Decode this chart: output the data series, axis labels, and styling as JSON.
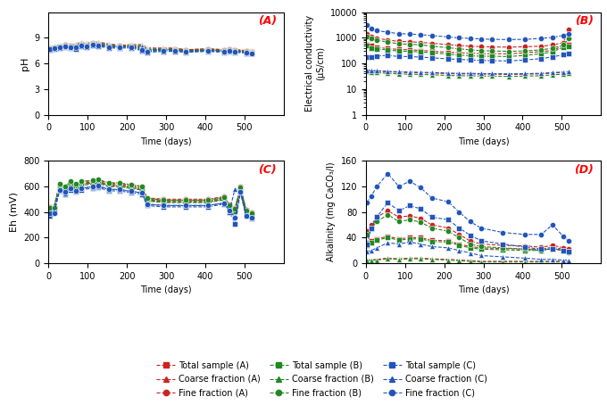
{
  "time": [
    3,
    14,
    28,
    42,
    56,
    70,
    84,
    98,
    112,
    126,
    154,
    182,
    210,
    238,
    252,
    294,
    322,
    350,
    406,
    448,
    462,
    476,
    504,
    518
  ],
  "pH_total_A": [
    7.7,
    7.8,
    8.0,
    8.1,
    8.0,
    7.9,
    8.2,
    8.1,
    8.3,
    8.2,
    8.0,
    8.0,
    8.0,
    7.9,
    7.6,
    7.6,
    7.6,
    7.5,
    7.6,
    7.5,
    7.6,
    7.5,
    7.4,
    7.4
  ],
  "pH_coarse_A": [
    7.9,
    8.0,
    8.1,
    8.2,
    8.1,
    8.3,
    8.5,
    8.4,
    8.5,
    8.5,
    8.3,
    8.1,
    8.2,
    8.2,
    7.8,
    7.8,
    7.8,
    7.6,
    7.7,
    7.6,
    7.7,
    7.6,
    7.5,
    7.5
  ],
  "pH_fine_A": [
    7.8,
    7.9,
    8.0,
    8.2,
    8.1,
    8.1,
    8.3,
    8.2,
    8.4,
    8.3,
    8.1,
    8.1,
    8.1,
    7.8,
    7.6,
    7.7,
    7.7,
    7.6,
    7.7,
    7.6,
    7.7,
    7.6,
    7.5,
    7.4
  ],
  "pH_total_B": [
    7.7,
    7.8,
    7.9,
    8.0,
    7.9,
    7.8,
    8.1,
    8.0,
    8.2,
    8.1,
    7.9,
    7.9,
    7.9,
    7.7,
    7.5,
    7.5,
    7.5,
    7.4,
    7.5,
    7.4,
    7.5,
    7.4,
    7.3,
    7.3
  ],
  "pH_coarse_B": [
    7.9,
    8.0,
    8.1,
    8.1,
    8.0,
    8.2,
    8.4,
    8.3,
    8.4,
    8.4,
    8.2,
    8.0,
    8.1,
    8.1,
    7.7,
    7.7,
    7.7,
    7.5,
    7.6,
    7.5,
    7.6,
    7.5,
    7.4,
    7.3
  ],
  "pH_fine_B": [
    7.8,
    7.9,
    8.0,
    8.1,
    8.0,
    8.0,
    8.2,
    8.1,
    8.3,
    8.2,
    8.0,
    8.0,
    8.0,
    7.7,
    7.5,
    7.6,
    7.6,
    7.5,
    7.6,
    7.5,
    7.6,
    7.5,
    7.4,
    7.3
  ],
  "pH_total_C": [
    7.6,
    7.7,
    7.8,
    7.9,
    7.8,
    7.7,
    8.0,
    7.9,
    8.1,
    8.0,
    7.8,
    7.8,
    7.8,
    7.5,
    7.3,
    7.4,
    7.4,
    7.3,
    7.4,
    7.3,
    7.4,
    7.3,
    7.2,
    7.2
  ],
  "pH_coarse_C": [
    7.8,
    7.9,
    8.0,
    8.0,
    7.9,
    8.1,
    8.3,
    8.2,
    8.3,
    8.3,
    8.1,
    7.9,
    8.0,
    8.0,
    7.6,
    7.6,
    7.6,
    7.4,
    7.5,
    7.4,
    7.5,
    7.4,
    7.3,
    7.2
  ],
  "pH_fine_C": [
    7.7,
    7.8,
    7.9,
    8.0,
    7.9,
    7.9,
    8.1,
    8.0,
    8.2,
    8.1,
    7.9,
    7.9,
    7.9,
    7.6,
    7.4,
    7.5,
    7.5,
    7.4,
    7.5,
    7.4,
    7.5,
    7.4,
    7.3,
    7.2
  ],
  "ec_time": [
    3,
    14,
    28,
    56,
    84,
    112,
    140,
    168,
    210,
    238,
    266,
    294,
    322,
    364,
    406,
    448,
    476,
    504,
    518
  ],
  "ec_total_A": [
    550,
    480,
    420,
    380,
    350,
    340,
    320,
    300,
    270,
    260,
    250,
    240,
    240,
    235,
    260,
    290,
    320,
    480,
    530
  ],
  "ec_coarse_A": [
    55,
    50,
    50,
    47,
    45,
    44,
    43,
    42,
    40,
    39,
    39,
    38,
    38,
    37,
    38,
    39,
    42,
    44,
    46
  ],
  "ec_fine_A": [
    1400,
    1100,
    950,
    820,
    720,
    700,
    660,
    610,
    540,
    500,
    470,
    450,
    440,
    430,
    445,
    470,
    520,
    650,
    2200
  ],
  "ec_total_B": [
    480,
    400,
    360,
    340,
    300,
    295,
    280,
    260,
    230,
    210,
    200,
    190,
    190,
    185,
    205,
    240,
    280,
    430,
    470
  ],
  "ec_coarse_B": [
    48,
    44,
    44,
    41,
    39,
    38,
    37,
    36,
    34,
    33,
    33,
    32,
    32,
    31,
    32,
    33,
    36,
    38,
    40
  ],
  "ec_fine_B": [
    1100,
    950,
    800,
    680,
    580,
    560,
    530,
    470,
    410,
    370,
    340,
    315,
    305,
    295,
    305,
    340,
    390,
    520,
    950
  ],
  "ec_total_C": [
    170,
    175,
    195,
    205,
    185,
    185,
    175,
    165,
    150,
    143,
    137,
    130,
    128,
    125,
    135,
    155,
    178,
    220,
    245
  ],
  "ec_coarse_C": [
    55,
    52,
    52,
    49,
    47,
    46,
    45,
    44,
    42,
    41,
    41,
    40,
    40,
    39,
    40,
    41,
    44,
    46,
    48
  ],
  "ec_fine_C": [
    3200,
    2300,
    1900,
    1650,
    1450,
    1400,
    1320,
    1220,
    1080,
    990,
    950,
    900,
    870,
    850,
    865,
    950,
    1030,
    1250,
    1450
  ],
  "eh_time": [
    3,
    14,
    28,
    42,
    56,
    70,
    84,
    112,
    126,
    154,
    182,
    210,
    238,
    252,
    294,
    350,
    406,
    448,
    462,
    476,
    490,
    504,
    518
  ],
  "eh_total_A": [
    430,
    430,
    610,
    590,
    625,
    605,
    625,
    635,
    640,
    615,
    615,
    600,
    590,
    500,
    490,
    490,
    490,
    510,
    450,
    420,
    590,
    410,
    390
  ],
  "eh_coarse_A": [
    420,
    445,
    595,
    565,
    615,
    595,
    615,
    625,
    635,
    605,
    605,
    590,
    580,
    490,
    480,
    480,
    480,
    498,
    442,
    412,
    580,
    400,
    380
  ],
  "eh_fine_A": [
    440,
    438,
    615,
    595,
    635,
    615,
    635,
    645,
    650,
    625,
    625,
    610,
    600,
    510,
    500,
    500,
    500,
    520,
    460,
    432,
    600,
    420,
    400
  ],
  "eh_total_B": [
    425,
    432,
    608,
    578,
    618,
    598,
    618,
    628,
    635,
    608,
    608,
    593,
    582,
    496,
    483,
    483,
    483,
    505,
    443,
    413,
    582,
    403,
    383
  ],
  "eh_coarse_B": [
    418,
    440,
    598,
    558,
    608,
    588,
    608,
    618,
    625,
    598,
    598,
    583,
    572,
    486,
    473,
    473,
    473,
    495,
    433,
    403,
    572,
    393,
    373
  ],
  "eh_fine_B": [
    433,
    435,
    618,
    598,
    638,
    618,
    638,
    648,
    655,
    628,
    628,
    613,
    602,
    506,
    493,
    493,
    493,
    515,
    453,
    423,
    592,
    413,
    393
  ],
  "eh_total_C": [
    380,
    395,
    565,
    535,
    575,
    555,
    575,
    585,
    592,
    565,
    565,
    550,
    540,
    450,
    440,
    440,
    440,
    462,
    400,
    310,
    550,
    368,
    348
  ],
  "eh_coarse_C": [
    372,
    408,
    575,
    545,
    585,
    565,
    585,
    595,
    602,
    575,
    575,
    560,
    550,
    460,
    450,
    450,
    450,
    472,
    410,
    582,
    560,
    378,
    358
  ],
  "eh_fine_C": [
    388,
    392,
    572,
    557,
    587,
    567,
    587,
    597,
    606,
    577,
    577,
    562,
    552,
    462,
    452,
    452,
    452,
    468,
    412,
    358,
    556,
    373,
    353
  ],
  "alk_time": [
    3,
    14,
    28,
    56,
    84,
    112,
    140,
    168,
    210,
    238,
    266,
    294,
    350,
    406,
    448,
    476,
    504,
    518
  ],
  "alk_total_A": [
    30,
    35,
    38,
    42,
    38,
    40,
    40,
    36,
    35,
    30,
    26,
    24,
    23,
    22,
    22,
    25,
    22,
    20
  ],
  "alk_coarse_A": [
    5,
    5,
    6,
    8,
    7,
    8,
    8,
    7,
    6,
    5,
    4,
    3,
    3,
    3,
    3,
    3,
    3,
    3
  ],
  "alk_fine_A": [
    50,
    60,
    72,
    82,
    72,
    74,
    70,
    60,
    55,
    45,
    35,
    30,
    28,
    27,
    25,
    28,
    24,
    22
  ],
  "alk_total_B": [
    28,
    32,
    36,
    40,
    36,
    38,
    38,
    34,
    33,
    28,
    24,
    22,
    21,
    20,
    20,
    23,
    20,
    18
  ],
  "alk_coarse_B": [
    5,
    5,
    5,
    7,
    6,
    7,
    7,
    6,
    5,
    4,
    3,
    2,
    2,
    2,
    2,
    2,
    2,
    2
  ],
  "alk_fine_B": [
    45,
    55,
    65,
    76,
    65,
    68,
    64,
    55,
    50,
    40,
    30,
    26,
    24,
    22,
    20,
    23,
    20,
    17
  ],
  "alk_total_C": [
    30,
    55,
    72,
    95,
    82,
    90,
    85,
    72,
    68,
    55,
    44,
    35,
    30,
    25,
    22,
    22,
    20,
    18
  ],
  "alk_coarse_C": [
    18,
    20,
    24,
    32,
    30,
    33,
    30,
    26,
    24,
    20,
    16,
    12,
    10,
    8,
    6,
    6,
    5,
    5
  ],
  "alk_fine_C": [
    95,
    105,
    120,
    140,
    120,
    128,
    118,
    102,
    96,
    80,
    65,
    55,
    48,
    45,
    45,
    60,
    42,
    35
  ],
  "color_A": "#cc2222",
  "color_B": "#228822",
  "color_C": "#2255bb",
  "ms": 4.5,
  "lw": 0.8
}
